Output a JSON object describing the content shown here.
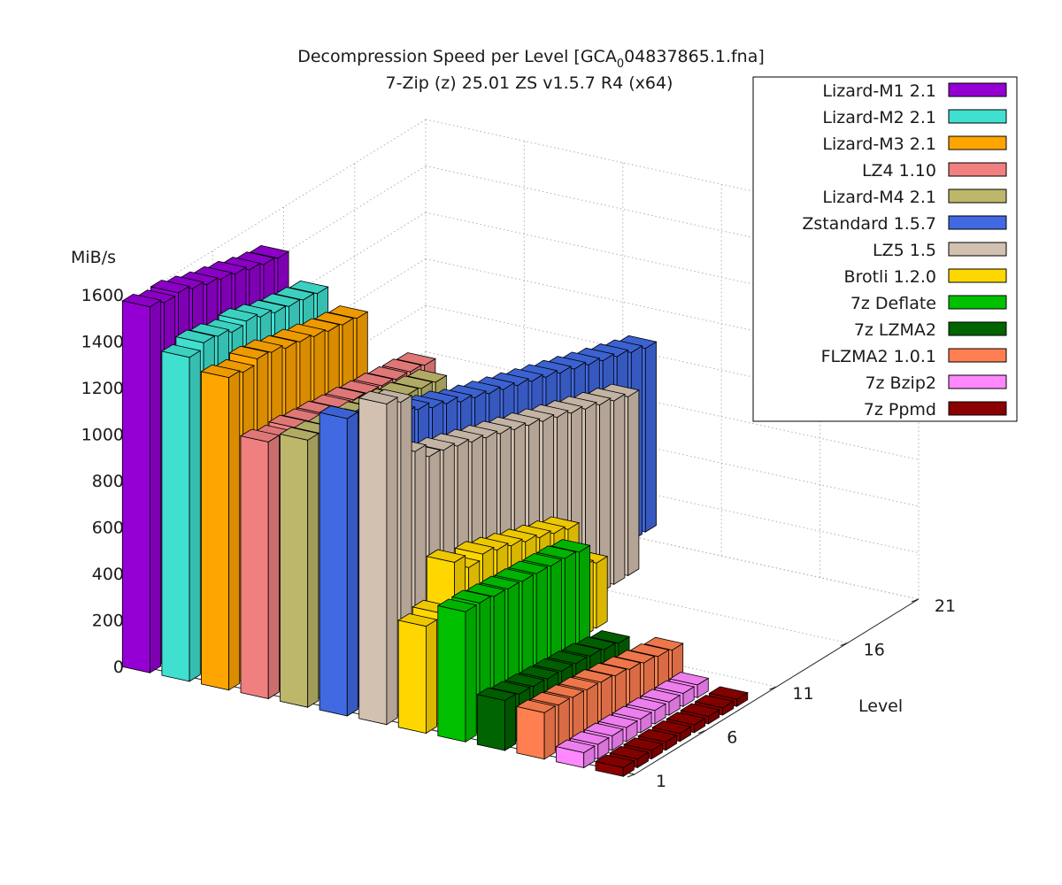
{
  "chart_data": {
    "type": "bar3d",
    "title": "Decompression Speed per Level [GCA",
    "title_sub": "0",
    "title_tail": "04837865.1.fna]",
    "subtitle": "7-Zip (z) 25.01 ZS v1.5.7 R4 (x64)",
    "zlabel": "MiB/s",
    "ylabel": "Level",
    "zlim": [
      0,
      1600
    ],
    "z_ticks": [
      "0",
      "200",
      "400",
      "600",
      "800",
      "1000",
      "1200",
      "1400",
      "1600"
    ],
    "level_ticks": [
      "1",
      "6",
      "11",
      "16",
      "21"
    ],
    "legend_position": "top-right",
    "series": [
      {
        "name": "Lizard-M1 2.1",
        "color": "#9400d3",
        "values": [
          1575,
          1555,
          1560,
          1540,
          1520,
          1505,
          1490,
          1470,
          1455,
          1445
        ]
      },
      {
        "name": "Lizard-M2 2.1",
        "color": "#40e0d0",
        "values": [
          1395,
          1420,
          1410,
          1390,
          1400,
          1380,
          1360,
          1350,
          1340,
          1330
        ]
      },
      {
        "name": "Lizard-M3 2.1",
        "color": "#ffa500",
        "values": [
          1345,
          1330,
          1350,
          1340,
          1320,
          1310,
          1295,
          1280,
          1270,
          1260
        ]
      },
      {
        "name": "LZ4 1.10",
        "color": "#f08080",
        "values": [
          1105,
          1085,
          1090,
          1080,
          1075,
          1065,
          1060,
          1050,
          1045,
          1035,
          1030,
          1020
        ]
      },
      {
        "name": "Lizard-M4 2.1",
        "color": "#bdb76b",
        "values": [
          1150,
          1140,
          1130,
          1120,
          1110,
          1100,
          1090,
          1080,
          1070,
          1060
        ]
      },
      {
        "name": "Zstandard 1.5.7",
        "color": "#4169e1",
        "values": [
          1280,
          1230,
          1190,
          1180,
          1150,
          1130,
          1100,
          1080,
          1050,
          1030,
          1010,
          990,
          970,
          950,
          930,
          910,
          890,
          870,
          850,
          830,
          810,
          790
        ]
      },
      {
        "name": "LZ5 1.5",
        "color": "#d2c1b0",
        "values": [
          1380,
          1350,
          1100,
          1040,
          1030,
          1010,
          990,
          970,
          950,
          930,
          910,
          890,
          870,
          850,
          830,
          810,
          790,
          770
        ]
      },
      {
        "name": "Brotli 1.2.0",
        "color": "#ffd700",
        "values": [
          460,
          480,
          660,
          600,
          620,
          600,
          580,
          560,
          540,
          520,
          500,
          300,
          280
        ]
      },
      {
        "name": "7z Deflate",
        "color": "#00c000",
        "values": [
          560,
          560,
          550,
          545,
          540,
          535,
          530,
          525,
          515
        ]
      },
      {
        "name": "7z LZMA2",
        "color": "#006400",
        "values": [
          215,
          205,
          200,
          195,
          190,
          185,
          180,
          170,
          160
        ]
      },
      {
        "name": "FLZMA2 1.0.1",
        "color": "#ff7f50",
        "values": [
          200,
          195,
          190,
          185,
          180,
          170,
          160,
          150,
          140,
          130
        ]
      },
      {
        "name": "7z Bzip2",
        "color": "#ff88ff",
        "values": [
          65,
          63,
          62,
          60,
          59,
          58,
          57,
          56,
          55
        ]
      },
      {
        "name": "7z Ppmd",
        "color": "#8b0000",
        "values": [
          38,
          37,
          36,
          35,
          34,
          33,
          32,
          31,
          30
        ]
      }
    ]
  }
}
